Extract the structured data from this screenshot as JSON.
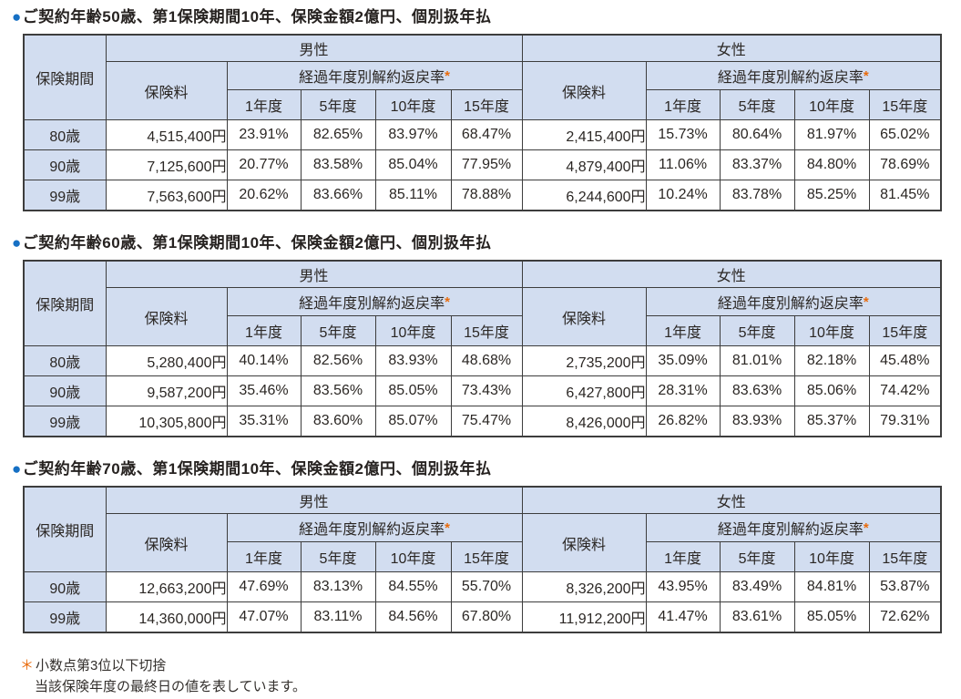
{
  "colors": {
    "header_bg": "#d2ddf0",
    "table_border": "#3d3d3d",
    "bullet_blue": "#1670c4",
    "asterisk_orange": "#e96b0c"
  },
  "table_headers": {
    "period": "保険期間",
    "male": "男性",
    "female": "女性",
    "premium": "保険料",
    "surrender_rate": "経過年度別解約返戻率",
    "asterisk": "*",
    "years": [
      "1年度",
      "5年度",
      "10年度",
      "15年度"
    ]
  },
  "sections": [
    {
      "bullet": "●",
      "title": "ご契約年齢50歳、第1保険期間10年、保険金額2億円、個別扱年払",
      "rows": [
        {
          "period": "80歳",
          "male": {
            "premium": "4,515,400円",
            "rates": [
              "23.91%",
              "82.65%",
              "83.97%",
              "68.47%"
            ]
          },
          "female": {
            "premium": "2,415,400円",
            "rates": [
              "15.73%",
              "80.64%",
              "81.97%",
              "65.02%"
            ]
          }
        },
        {
          "period": "90歳",
          "male": {
            "premium": "7,125,600円",
            "rates": [
              "20.77%",
              "83.58%",
              "85.04%",
              "77.95%"
            ]
          },
          "female": {
            "premium": "4,879,400円",
            "rates": [
              "11.06%",
              "83.37%",
              "84.80%",
              "78.69%"
            ]
          }
        },
        {
          "period": "99歳",
          "male": {
            "premium": "7,563,600円",
            "rates": [
              "20.62%",
              "83.66%",
              "85.11%",
              "78.88%"
            ]
          },
          "female": {
            "premium": "6,244,600円",
            "rates": [
              "10.24%",
              "83.78%",
              "85.25%",
              "81.45%"
            ]
          }
        }
      ]
    },
    {
      "bullet": "●",
      "title": "ご契約年齢60歳、第1保険期間10年、保険金額2億円、個別扱年払",
      "rows": [
        {
          "period": "80歳",
          "male": {
            "premium": "5,280,400円",
            "rates": [
              "40.14%",
              "82.56%",
              "83.93%",
              "48.68%"
            ]
          },
          "female": {
            "premium": "2,735,200円",
            "rates": [
              "35.09%",
              "81.01%",
              "82.18%",
              "45.48%"
            ]
          }
        },
        {
          "period": "90歳",
          "male": {
            "premium": "9,587,200円",
            "rates": [
              "35.46%",
              "83.56%",
              "85.05%",
              "73.43%"
            ]
          },
          "female": {
            "premium": "6,427,800円",
            "rates": [
              "28.31%",
              "83.63%",
              "85.06%",
              "74.42%"
            ]
          }
        },
        {
          "period": "99歳",
          "male": {
            "premium": "10,305,800円",
            "rates": [
              "35.31%",
              "83.60%",
              "85.07%",
              "75.47%"
            ]
          },
          "female": {
            "premium": "8,426,000円",
            "rates": [
              "26.82%",
              "83.93%",
              "85.37%",
              "79.31%"
            ]
          }
        }
      ]
    },
    {
      "bullet": "●",
      "title": "ご契約年齢70歳、第1保険期間10年、保険金額2億円、個別扱年払",
      "rows": [
        {
          "period": "90歳",
          "male": {
            "premium": "12,663,200円",
            "rates": [
              "47.69%",
              "83.13%",
              "84.55%",
              "55.70%"
            ]
          },
          "female": {
            "premium": "8,326,200円",
            "rates": [
              "43.95%",
              "83.49%",
              "84.81%",
              "53.87%"
            ]
          }
        },
        {
          "period": "99歳",
          "male": {
            "premium": "14,360,000円",
            "rates": [
              "47.07%",
              "83.11%",
              "84.56%",
              "67.80%"
            ]
          },
          "female": {
            "premium": "11,912,200円",
            "rates": [
              "41.47%",
              "83.61%",
              "85.05%",
              "72.62%"
            ]
          }
        }
      ]
    }
  ],
  "footnote": {
    "asterisk": "＊",
    "line1": "小数点第3位以下切捨",
    "line2": "当該保険年度の最終日の値を表しています。"
  }
}
